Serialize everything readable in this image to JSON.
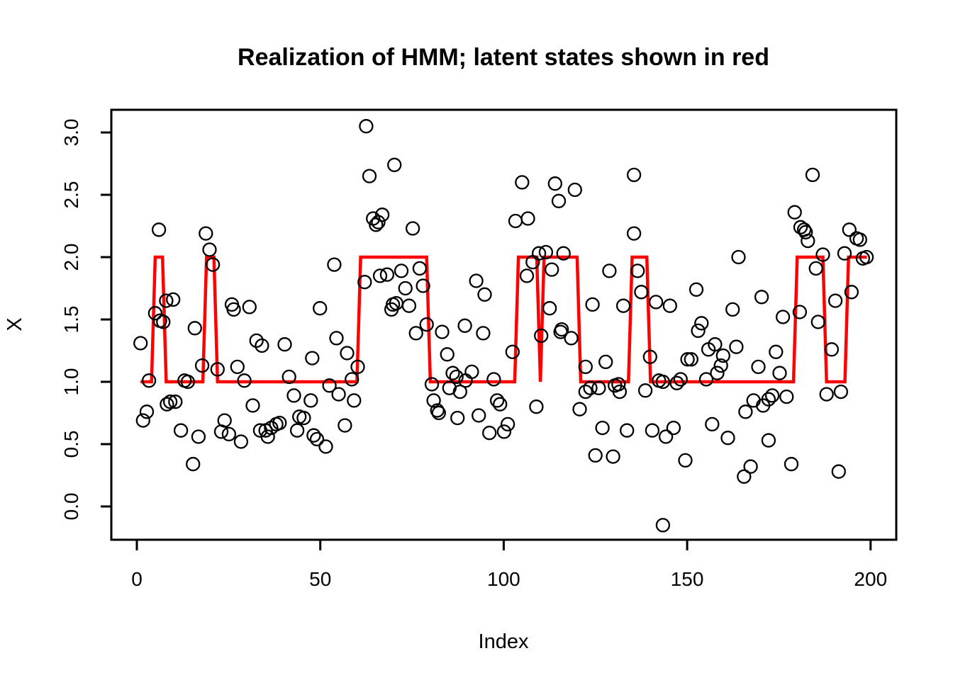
{
  "title": "Realization of HMM; latent states shown in red",
  "axes": {
    "xlabel": "Index",
    "ylabel": "X"
  },
  "chart_data": {
    "type": "scatter",
    "title": "Realization of HMM; latent states shown in red",
    "xlabel": "Index",
    "ylabel": "X",
    "grid": false,
    "legend": "none",
    "xlim": [
      -6.96,
      207.0
    ],
    "ylim": [
      -0.267,
      3.182
    ],
    "x_ticks": [
      {
        "value": 0,
        "label": "0"
      },
      {
        "value": 50,
        "label": "50"
      },
      {
        "value": 100,
        "label": "100"
      },
      {
        "value": 150,
        "label": "150"
      },
      {
        "value": 200,
        "label": "200"
      }
    ],
    "y_ticks": [
      {
        "value": 0.0,
        "label": "0.0"
      },
      {
        "value": 0.5,
        "label": "0.5"
      },
      {
        "value": 1.0,
        "label": "1.0"
      },
      {
        "value": 1.5,
        "label": "1.5"
      },
      {
        "value": 2.0,
        "label": "2.0"
      },
      {
        "value": 2.5,
        "label": "2.5"
      },
      {
        "value": 3.0,
        "label": "3.0"
      }
    ],
    "point_style": {
      "shape": "open-circle",
      "color": "#000000",
      "radius": 9,
      "stroke_width": 2.3
    },
    "latent_line": {
      "color": "#FF0000",
      "stroke_width": 4.5,
      "description": "latent state sequence (states 1 and 2)",
      "vertices": [
        [
          1,
          1
        ],
        [
          4,
          1
        ],
        [
          5,
          2
        ],
        [
          7,
          2
        ],
        [
          8,
          1
        ],
        [
          18,
          1
        ],
        [
          19,
          2
        ],
        [
          21,
          2
        ],
        [
          22,
          1
        ],
        [
          60,
          1
        ],
        [
          61,
          2
        ],
        [
          79,
          2
        ],
        [
          80,
          1
        ],
        [
          103,
          1
        ],
        [
          104,
          2
        ],
        [
          109,
          2
        ],
        [
          110,
          1
        ],
        [
          111,
          2
        ],
        [
          120,
          2
        ],
        [
          121,
          1
        ],
        [
          134,
          1
        ],
        [
          135,
          2
        ],
        [
          139,
          2
        ],
        [
          140,
          1
        ],
        [
          179,
          1
        ],
        [
          180,
          2
        ],
        [
          187,
          2
        ],
        [
          188,
          1
        ],
        [
          193,
          1
        ],
        [
          194,
          2
        ],
        [
          199,
          2
        ]
      ]
    },
    "points": [
      [
        1.0,
        1.31
      ],
      [
        1.7,
        0.69
      ],
      [
        2.7,
        0.76
      ],
      [
        3.3,
        1.01
      ],
      [
        5.0,
        1.55
      ],
      [
        6.0,
        2.22
      ],
      [
        6.3,
        1.49
      ],
      [
        7.2,
        1.48
      ],
      [
        8.0,
        1.65
      ],
      [
        8.2,
        0.82
      ],
      [
        9.1,
        0.84
      ],
      [
        9.9,
        1.66
      ],
      [
        10.5,
        0.84
      ],
      [
        12.0,
        0.61
      ],
      [
        13.0,
        1.01
      ],
      [
        13.9,
        1.0
      ],
      [
        15.3,
        0.34
      ],
      [
        15.8,
        1.43
      ],
      [
        16.8,
        0.56
      ],
      [
        17.8,
        1.13
      ],
      [
        18.8,
        2.19
      ],
      [
        19.8,
        2.06
      ],
      [
        20.7,
        1.94
      ],
      [
        22.0,
        1.1
      ],
      [
        23.0,
        0.6
      ],
      [
        23.9,
        0.69
      ],
      [
        25.1,
        0.58
      ],
      [
        25.9,
        1.62
      ],
      [
        26.4,
        1.58
      ],
      [
        27.4,
        1.12
      ],
      [
        28.4,
        0.52
      ],
      [
        29.3,
        1.01
      ],
      [
        30.7,
        1.6
      ],
      [
        31.6,
        0.81
      ],
      [
        32.6,
        1.33
      ],
      [
        33.6,
        0.61
      ],
      [
        34.1,
        1.29
      ],
      [
        35.1,
        0.61
      ],
      [
        35.7,
        0.56
      ],
      [
        36.6,
        0.63
      ],
      [
        38.0,
        0.66
      ],
      [
        38.9,
        0.67
      ],
      [
        40.3,
        1.3
      ],
      [
        41.5,
        1.04
      ],
      [
        42.8,
        0.89
      ],
      [
        43.7,
        0.61
      ],
      [
        44.3,
        0.72
      ],
      [
        45.5,
        0.71
      ],
      [
        47.4,
        0.85
      ],
      [
        47.8,
        1.19
      ],
      [
        48.2,
        0.57
      ],
      [
        49.1,
        0.54
      ],
      [
        49.9,
        1.59
      ],
      [
        51.5,
        0.48
      ],
      [
        52.5,
        0.97
      ],
      [
        53.8,
        1.94
      ],
      [
        54.4,
        1.35
      ],
      [
        55.0,
        0.9
      ],
      [
        56.7,
        0.65
      ],
      [
        57.3,
        1.23
      ],
      [
        58.6,
        1.02
      ],
      [
        59.2,
        0.85
      ],
      [
        60.2,
        1.12
      ],
      [
        62.1,
        1.8
      ],
      [
        62.5,
        3.05
      ],
      [
        63.4,
        2.65
      ],
      [
        64.4,
        2.31
      ],
      [
        65.2,
        2.26
      ],
      [
        65.8,
        2.28
      ],
      [
        66.3,
        1.85
      ],
      [
        66.9,
        2.34
      ],
      [
        68.2,
        1.86
      ],
      [
        69.4,
        1.58
      ],
      [
        69.8,
        1.62
      ],
      [
        70.2,
        2.74
      ],
      [
        70.7,
        1.63
      ],
      [
        72.1,
        1.89
      ],
      [
        73.2,
        1.75
      ],
      [
        74.2,
        1.61
      ],
      [
        75.2,
        2.23
      ],
      [
        76.1,
        1.39
      ],
      [
        77.1,
        1.91
      ],
      [
        78.0,
        1.77
      ],
      [
        79.0,
        1.46
      ],
      [
        80.4,
        0.98
      ],
      [
        80.9,
        0.85
      ],
      [
        81.9,
        0.77
      ],
      [
        82.3,
        0.75
      ],
      [
        83.2,
        1.4
      ],
      [
        84.6,
        1.22
      ],
      [
        85.2,
        0.95
      ],
      [
        86.1,
        1.07
      ],
      [
        87.1,
        1.04
      ],
      [
        87.4,
        0.71
      ],
      [
        88.1,
        0.92
      ],
      [
        89.4,
        1.45
      ],
      [
        89.6,
        1.01
      ],
      [
        91.3,
        1.08
      ],
      [
        92.5,
        1.81
      ],
      [
        93.2,
        0.73
      ],
      [
        94.4,
        1.39
      ],
      [
        94.8,
        1.7
      ],
      [
        96.1,
        0.59
      ],
      [
        97.3,
        1.02
      ],
      [
        98.2,
        0.85
      ],
      [
        99.0,
        0.82
      ],
      [
        100.1,
        0.6
      ],
      [
        101.1,
        0.66
      ],
      [
        102.4,
        1.24
      ],
      [
        103.2,
        2.29
      ],
      [
        105.0,
        2.6
      ],
      [
        106.3,
        1.85
      ],
      [
        106.6,
        2.31
      ],
      [
        107.9,
        1.96
      ],
      [
        108.9,
        0.8
      ],
      [
        109.6,
        2.03
      ],
      [
        110.2,
        1.37
      ],
      [
        111.5,
        2.04
      ],
      [
        112.5,
        1.59
      ],
      [
        113.1,
        1.9
      ],
      [
        114.0,
        2.59
      ],
      [
        115.0,
        2.45
      ],
      [
        115.5,
        1.4
      ],
      [
        115.8,
        1.42
      ],
      [
        116.3,
        2.03
      ],
      [
        118.4,
        1.35
      ],
      [
        119.4,
        2.54
      ],
      [
        120.7,
        0.78
      ],
      [
        122.3,
        1.12
      ],
      [
        122.3,
        0.92
      ],
      [
        123.6,
        0.95
      ],
      [
        124.2,
        1.62
      ],
      [
        125.0,
        0.41
      ],
      [
        125.9,
        0.95
      ],
      [
        126.9,
        0.63
      ],
      [
        127.8,
        1.16
      ],
      [
        128.8,
        1.89
      ],
      [
        129.8,
        0.4
      ],
      [
        130.3,
        0.97
      ],
      [
        131.3,
        0.98
      ],
      [
        131.6,
        0.92
      ],
      [
        132.6,
        1.61
      ],
      [
        133.6,
        0.61
      ],
      [
        135.5,
        2.66
      ],
      [
        135.5,
        2.19
      ],
      [
        136.5,
        1.89
      ],
      [
        137.5,
        1.72
      ],
      [
        138.6,
        0.93
      ],
      [
        139.9,
        1.2
      ],
      [
        140.5,
        0.61
      ],
      [
        141.5,
        1.64
      ],
      [
        142.3,
        1.01
      ],
      [
        143.4,
        1.0
      ],
      [
        143.4,
        -0.15
      ],
      [
        144.2,
        0.56
      ],
      [
        145.3,
        1.61
      ],
      [
        146.3,
        0.63
      ],
      [
        147.2,
        0.99
      ],
      [
        148.2,
        1.02
      ],
      [
        149.5,
        0.37
      ],
      [
        150.1,
        1.18
      ],
      [
        151.1,
        1.18
      ],
      [
        152.5,
        1.74
      ],
      [
        153.0,
        1.41
      ],
      [
        153.9,
        1.47
      ],
      [
        155.2,
        1.02
      ],
      [
        155.8,
        1.26
      ],
      [
        156.8,
        0.66
      ],
      [
        157.6,
        1.3
      ],
      [
        158.2,
        1.07
      ],
      [
        159.2,
        1.13
      ],
      [
        159.8,
        1.21
      ],
      [
        161.1,
        0.55
      ],
      [
        162.4,
        1.58
      ],
      [
        163.4,
        1.28
      ],
      [
        164.0,
        2.0
      ],
      [
        165.5,
        0.24
      ],
      [
        165.9,
        0.76
      ],
      [
        167.3,
        0.32
      ],
      [
        168.1,
        0.85
      ],
      [
        169.4,
        1.12
      ],
      [
        170.3,
        1.68
      ],
      [
        170.7,
        0.81
      ],
      [
        172.2,
        0.86
      ],
      [
        172.2,
        0.53
      ],
      [
        173.2,
        0.89
      ],
      [
        174.2,
        1.24
      ],
      [
        175.2,
        1.07
      ],
      [
        176.1,
        1.52
      ],
      [
        177.1,
        0.88
      ],
      [
        178.4,
        0.34
      ],
      [
        179.3,
        2.36
      ],
      [
        180.7,
        1.56
      ],
      [
        180.9,
        2.24
      ],
      [
        181.9,
        2.22
      ],
      [
        182.3,
        2.2
      ],
      [
        182.9,
        2.13
      ],
      [
        184.2,
        2.66
      ],
      [
        185.1,
        1.91
      ],
      [
        185.7,
        1.48
      ],
      [
        187.0,
        2.02
      ],
      [
        188.0,
        0.9
      ],
      [
        189.4,
        1.26
      ],
      [
        190.4,
        1.65
      ],
      [
        191.3,
        0.28
      ],
      [
        191.9,
        0.92
      ],
      [
        192.9,
        2.03
      ],
      [
        194.2,
        2.22
      ],
      [
        194.8,
        1.72
      ],
      [
        196.2,
        2.15
      ],
      [
        197.1,
        2.14
      ],
      [
        197.9,
        1.99
      ],
      [
        198.9,
        2.0
      ]
    ]
  }
}
